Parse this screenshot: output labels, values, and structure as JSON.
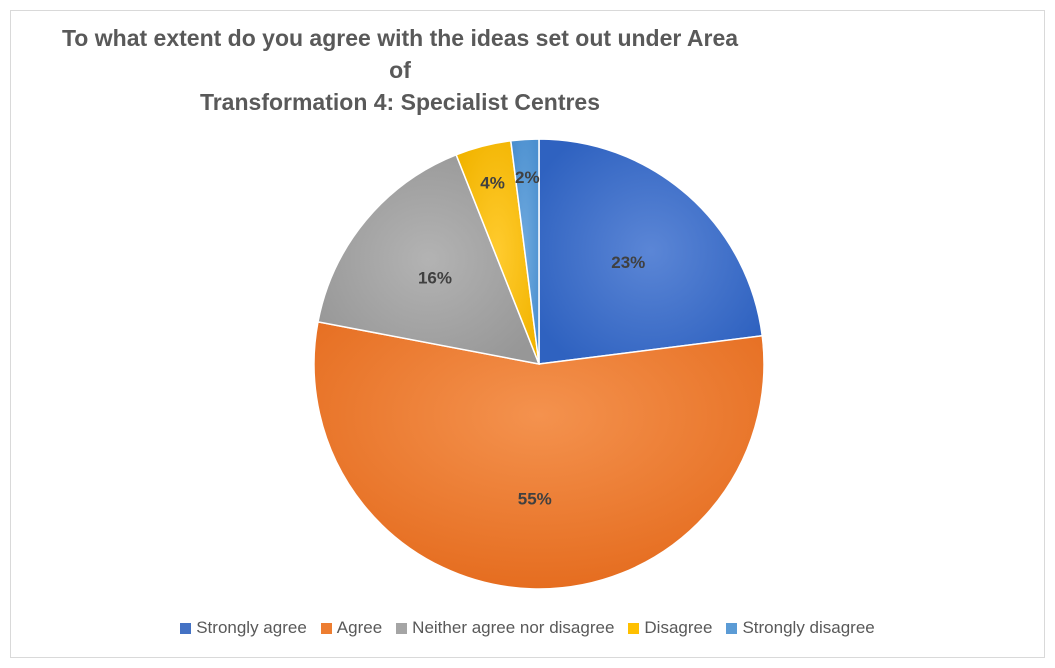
{
  "chart_data": {
    "type": "pie",
    "title_lines": [
      "To what extent do you agree with the ideas set out under Area of",
      "Transformation 4: Specialist Centres"
    ],
    "slices": [
      {
        "label": "Strongly agree",
        "value": 23,
        "display": "23%",
        "color": "#4472c4"
      },
      {
        "label": "Agree",
        "value": 55,
        "display": "55%",
        "color": "#ed7d31"
      },
      {
        "label": "Neither agree nor disagree",
        "value": 16,
        "display": "16%",
        "color": "#a5a5a5"
      },
      {
        "label": "Disagree",
        "value": 4,
        "display": "4%",
        "color": "#ffc000"
      },
      {
        "label": "Strongly disagree",
        "value": 2,
        "display": "2%",
        "color": "#5b9bd5"
      }
    ],
    "legend_position": "bottom"
  }
}
